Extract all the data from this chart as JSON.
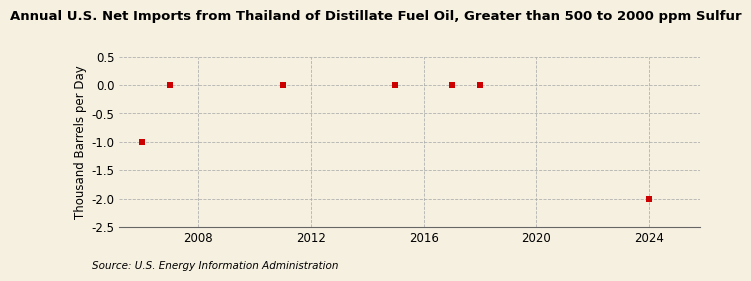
{
  "title": "Annual U.S. Net Imports from Thailand of Distillate Fuel Oil, Greater than 500 to 2000 ppm Sulfur",
  "ylabel": "Thousand Barrels per Day",
  "source": "Source: U.S. Energy Information Administration",
  "x_data": [
    2006,
    2007,
    2011,
    2015,
    2017,
    2018,
    2024
  ],
  "y_data": [
    -1.0,
    0.0,
    0.0,
    0.0,
    0.0,
    0.0,
    -2.0
  ],
  "xlim": [
    2005.2,
    2025.8
  ],
  "ylim": [
    -2.5,
    0.5
  ],
  "xticks": [
    2008,
    2012,
    2016,
    2020,
    2024
  ],
  "yticks": [
    0.5,
    0.0,
    -0.5,
    -1.0,
    -1.5,
    -2.0,
    -2.5
  ],
  "marker_color": "#cc0000",
  "marker_size": 4,
  "background_color": "#f5f0e0",
  "grid_color": "#aaaaaa",
  "title_fontsize": 9.5,
  "axis_fontsize": 8.5,
  "tick_fontsize": 8.5,
  "source_fontsize": 7.5
}
